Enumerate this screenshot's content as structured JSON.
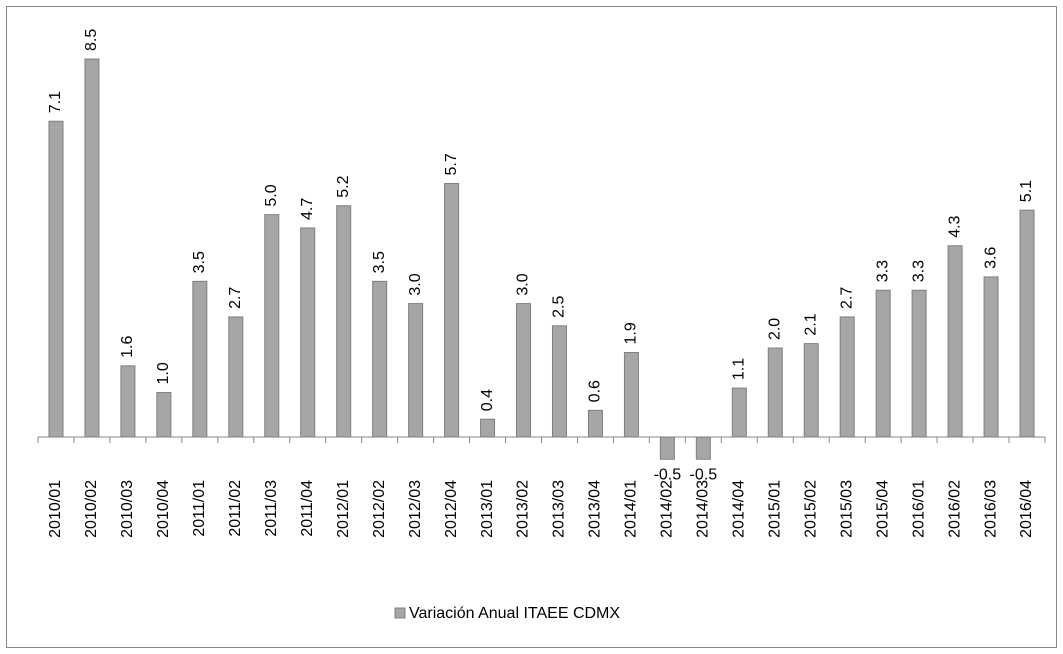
{
  "chart_data": {
    "type": "bar",
    "categories": [
      "2010/01",
      "2010/02",
      "2010/03",
      "2010/04",
      "2011/01",
      "2011/02",
      "2011/03",
      "2011/04",
      "2012/01",
      "2012/02",
      "2012/03",
      "2012/04",
      "2013/01",
      "2013/02",
      "2013/03",
      "2013/04",
      "2014/01",
      "2014/02",
      "2014/03",
      "2014/04",
      "2015/01",
      "2015/02",
      "2015/03",
      "2015/04",
      "2016/01",
      "2016/02",
      "2016/03",
      "2016/04"
    ],
    "series": [
      {
        "name": "Variación Anual ITAEE CDMX",
        "color": "#a6a6a6",
        "values": [
          7.1,
          8.5,
          1.6,
          1.0,
          3.5,
          2.7,
          5.0,
          4.7,
          5.2,
          3.5,
          3.0,
          5.7,
          0.4,
          3.0,
          2.5,
          0.6,
          1.9,
          -0.5,
          -0.5,
          1.1,
          2.0,
          2.1,
          2.7,
          3.3,
          3.3,
          4.3,
          3.6,
          5.1
        ],
        "value_labels": [
          "7.1",
          "8.5",
          "1.6",
          "1.0",
          "3.5",
          "2.7",
          "5.0",
          "4.7",
          "5.2",
          "3.5",
          "3.0",
          "5.7",
          "0.4",
          "3.0",
          "2.5",
          "0.6",
          "1.9",
          "-0.5",
          "-0.5",
          "1.1",
          "2.0",
          "2.1",
          "2.7",
          "3.3",
          "3.3",
          "4.3",
          "3.6",
          "5.1"
        ]
      }
    ],
    "legend": "bottom"
  }
}
